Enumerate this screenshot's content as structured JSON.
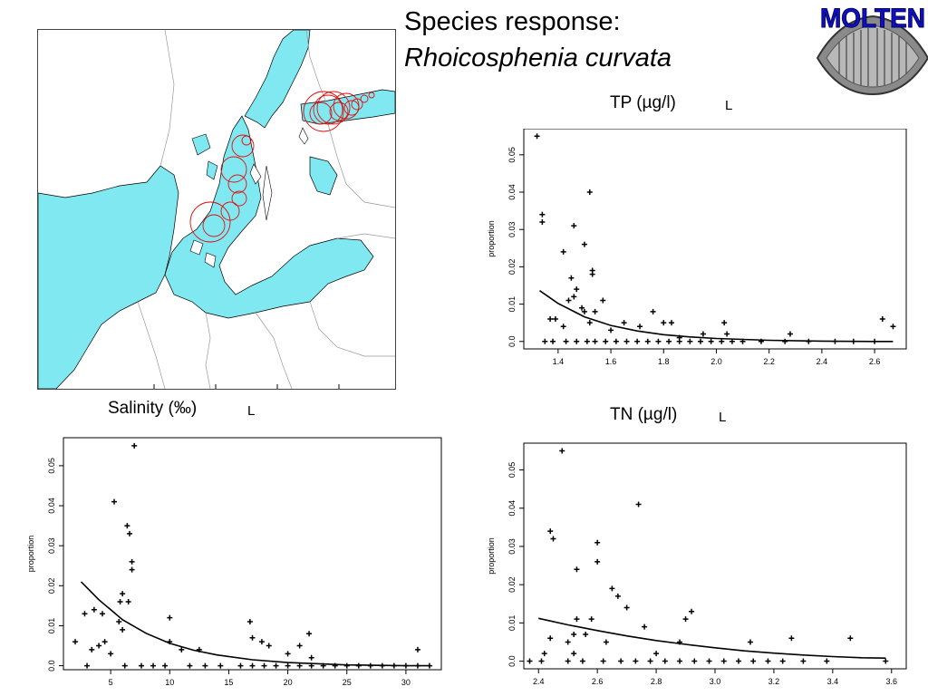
{
  "title": {
    "line1": "Species response:",
    "line2": "Rhoicosphenia curvata"
  },
  "logo_text": "MOLTEN",
  "colors": {
    "sea": "#7fe8f0",
    "marks": "#000000",
    "circles": "#e01010",
    "logo": "#1010c0"
  },
  "panels": {
    "tp": {
      "label": "TP (µg/l)",
      "tag": "L"
    },
    "salinity": {
      "label": "Salinity (‰)",
      "tag": "L"
    },
    "tn": {
      "label": "TN (µg/l)",
      "tag": "L"
    }
  },
  "chart_data": [
    {
      "id": "tp",
      "type": "scatter",
      "title": "TP (µg/l)",
      "xlabel": "",
      "ylabel": "proportion",
      "xlim": [
        1.27,
        2.72
      ],
      "ylim": [
        -0.002,
        0.057
      ],
      "xticks": [
        1.4,
        1.6,
        1.8,
        2.0,
        2.2,
        2.4,
        2.6
      ],
      "yticks": [
        0.0,
        0.01,
        0.02,
        0.03,
        0.04,
        0.05
      ],
      "grid": false,
      "points": [
        [
          1.32,
          0.055
        ],
        [
          1.34,
          0.034
        ],
        [
          1.34,
          0.032
        ],
        [
          1.52,
          0.04
        ],
        [
          1.42,
          0.024
        ],
        [
          1.46,
          0.031
        ],
        [
          1.5,
          0.026
        ],
        [
          1.53,
          0.018
        ],
        [
          1.53,
          0.019
        ],
        [
          1.44,
          0.011
        ],
        [
          1.46,
          0.012
        ],
        [
          1.45,
          0.017
        ],
        [
          1.47,
          0.014
        ],
        [
          1.57,
          0.011
        ],
        [
          1.49,
          0.009
        ],
        [
          1.5,
          0.008
        ],
        [
          1.54,
          0.008
        ],
        [
          1.37,
          0.006
        ],
        [
          1.39,
          0.006
        ],
        [
          1.42,
          0.004
        ],
        [
          1.52,
          0.005
        ],
        [
          1.6,
          0.003
        ],
        [
          1.65,
          0.005
        ],
        [
          1.71,
          0.004
        ],
        [
          1.76,
          0.008
        ],
        [
          1.8,
          0.005
        ],
        [
          1.83,
          0.005
        ],
        [
          1.86,
          0.001
        ],
        [
          1.95,
          0.002
        ],
        [
          2.03,
          0.005
        ],
        [
          2.04,
          0.002
        ],
        [
          2.28,
          0.002
        ],
        [
          2.63,
          0.006
        ],
        [
          2.67,
          0.004
        ],
        [
          1.35,
          0.0
        ],
        [
          1.38,
          0.0
        ],
        [
          1.43,
          0.0
        ],
        [
          1.47,
          0.0
        ],
        [
          1.51,
          0.0
        ],
        [
          1.54,
          0.0
        ],
        [
          1.58,
          0.0
        ],
        [
          1.62,
          0.0
        ],
        [
          1.66,
          0.0
        ],
        [
          1.7,
          0.0
        ],
        [
          1.74,
          0.0
        ],
        [
          1.78,
          0.0
        ],
        [
          1.82,
          0.0
        ],
        [
          1.86,
          0.0
        ],
        [
          1.9,
          0.0
        ],
        [
          1.94,
          0.0
        ],
        [
          1.98,
          0.0
        ],
        [
          2.02,
          0.0
        ],
        [
          2.06,
          0.0
        ],
        [
          2.1,
          0.0
        ],
        [
          2.17,
          0.0
        ],
        [
          2.26,
          0.0
        ],
        [
          2.35,
          0.0
        ],
        [
          2.45,
          0.0
        ],
        [
          2.52,
          0.0
        ],
        [
          2.6,
          0.0
        ]
      ],
      "curve": [
        [
          1.33,
          0.0136
        ],
        [
          1.4,
          0.0102
        ],
        [
          1.5,
          0.0066
        ],
        [
          1.6,
          0.0043
        ],
        [
          1.7,
          0.0028
        ],
        [
          1.8,
          0.0018
        ],
        [
          1.9,
          0.0012
        ],
        [
          2.0,
          0.0008
        ],
        [
          2.2,
          0.0003
        ],
        [
          2.4,
          0.0001
        ],
        [
          2.6,
          0.0
        ],
        [
          2.67,
          0.0
        ]
      ]
    },
    {
      "id": "salinity",
      "type": "scatter",
      "title": "Salinity (‰)",
      "xlabel": "",
      "ylabel": "proportion",
      "xlim": [
        1,
        33
      ],
      "ylim": [
        -0.001,
        0.057
      ],
      "xticks": [
        5,
        10,
        15,
        20,
        25,
        30
      ],
      "yticks": [
        0.0,
        0.01,
        0.02,
        0.03,
        0.04,
        0.05
      ],
      "grid": false,
      "points": [
        [
          7,
          0.055
        ],
        [
          5.3,
          0.041
        ],
        [
          6.4,
          0.035
        ],
        [
          6.6,
          0.033
        ],
        [
          6.8,
          0.026
        ],
        [
          6.8,
          0.024
        ],
        [
          6,
          0.018
        ],
        [
          5.8,
          0.016
        ],
        [
          6.5,
          0.016
        ],
        [
          4.3,
          0.013
        ],
        [
          3.6,
          0.014
        ],
        [
          2.8,
          0.013
        ],
        [
          5.7,
          0.011
        ],
        [
          10,
          0.012
        ],
        [
          6,
          0.009
        ],
        [
          4.5,
          0.006
        ],
        [
          2,
          0.006
        ],
        [
          3.4,
          0.004
        ],
        [
          4,
          0.005
        ],
        [
          5,
          0.003
        ],
        [
          10,
          0.006
        ],
        [
          11,
          0.004
        ],
        [
          12.5,
          0.004
        ],
        [
          16.8,
          0.011
        ],
        [
          17,
          0.007
        ],
        [
          17.8,
          0.006
        ],
        [
          18.4,
          0.005
        ],
        [
          21.8,
          0.008
        ],
        [
          21,
          0.005
        ],
        [
          20,
          0.003
        ],
        [
          22,
          0.002
        ],
        [
          31,
          0.004
        ],
        [
          3,
          0.0
        ],
        [
          6.2,
          0.0
        ],
        [
          7.6,
          0.0
        ],
        [
          8.6,
          0.0
        ],
        [
          9.6,
          0.0
        ],
        [
          11.7,
          0.0
        ],
        [
          13,
          0.0
        ],
        [
          14.3,
          0.0
        ],
        [
          16,
          0.0
        ],
        [
          17,
          0.0
        ],
        [
          18,
          0.0
        ],
        [
          19,
          0.0
        ],
        [
          20,
          0.0
        ],
        [
          21,
          0.0
        ],
        [
          22,
          0.0
        ],
        [
          23,
          0.0
        ],
        [
          24,
          0.0
        ],
        [
          25,
          0.0
        ],
        [
          26,
          0.0
        ],
        [
          27,
          0.0
        ],
        [
          28,
          0.0
        ],
        [
          29,
          0.0
        ],
        [
          30,
          0.0
        ],
        [
          31,
          0.0
        ],
        [
          32,
          0.0
        ]
      ],
      "curve": [
        [
          2.5,
          0.021
        ],
        [
          4,
          0.0165
        ],
        [
          6,
          0.0115
        ],
        [
          8,
          0.0081
        ],
        [
          10,
          0.0056
        ],
        [
          12,
          0.0039
        ],
        [
          14,
          0.0027
        ],
        [
          17,
          0.0015
        ],
        [
          20,
          0.0008
        ],
        [
          25,
          0.0002
        ],
        [
          30,
          0.0
        ],
        [
          32,
          0.0
        ]
      ]
    },
    {
      "id": "tn",
      "type": "scatter",
      "title": "TN (µg/l)",
      "xlabel": "",
      "ylabel": "proportion",
      "xlim": [
        2.35,
        3.65
      ],
      "ylim": [
        -0.002,
        0.057
      ],
      "xticks": [
        2.4,
        2.6,
        2.8,
        3.0,
        3.2,
        3.4,
        3.6
      ],
      "yticks": [
        0.0,
        0.01,
        0.02,
        0.03,
        0.04,
        0.05
      ],
      "grid": false,
      "points": [
        [
          2.48,
          0.055
        ],
        [
          2.74,
          0.041
        ],
        [
          2.44,
          0.034
        ],
        [
          2.45,
          0.032
        ],
        [
          2.6,
          0.031
        ],
        [
          2.6,
          0.026
        ],
        [
          2.53,
          0.024
        ],
        [
          2.65,
          0.019
        ],
        [
          2.67,
          0.017
        ],
        [
          2.7,
          0.014
        ],
        [
          2.92,
          0.013
        ],
        [
          2.9,
          0.011
        ],
        [
          2.58,
          0.011
        ],
        [
          2.53,
          0.011
        ],
        [
          2.76,
          0.009
        ],
        [
          2.88,
          0.005
        ],
        [
          2.44,
          0.006
        ],
        [
          2.5,
          0.005
        ],
        [
          2.52,
          0.007
        ],
        [
          2.56,
          0.007
        ],
        [
          2.63,
          0.005
        ],
        [
          3.12,
          0.005
        ],
        [
          3.26,
          0.006
        ],
        [
          3.46,
          0.006
        ],
        [
          2.42,
          0.002
        ],
        [
          2.52,
          0.002
        ],
        [
          2.8,
          0.002
        ],
        [
          2.37,
          0.0
        ],
        [
          2.41,
          0.0
        ],
        [
          2.5,
          0.0
        ],
        [
          2.55,
          0.0
        ],
        [
          2.62,
          0.0
        ],
        [
          2.68,
          0.0
        ],
        [
          2.73,
          0.0
        ],
        [
          2.78,
          0.0
        ],
        [
          2.83,
          0.0
        ],
        [
          2.88,
          0.0
        ],
        [
          2.93,
          0.0
        ],
        [
          2.98,
          0.0
        ],
        [
          3.03,
          0.0
        ],
        [
          3.08,
          0.0
        ],
        [
          3.13,
          0.0
        ],
        [
          3.18,
          0.0
        ],
        [
          3.23,
          0.0
        ],
        [
          3.3,
          0.0
        ],
        [
          3.38,
          0.0
        ],
        [
          3.58,
          0.0
        ]
      ],
      "curve": [
        [
          2.4,
          0.0112
        ],
        [
          2.5,
          0.0095
        ],
        [
          2.6,
          0.008
        ],
        [
          2.7,
          0.0066
        ],
        [
          2.8,
          0.0054
        ],
        [
          2.9,
          0.0044
        ],
        [
          3.0,
          0.0035
        ],
        [
          3.1,
          0.0027
        ],
        [
          3.2,
          0.0021
        ],
        [
          3.3,
          0.0016
        ],
        [
          3.4,
          0.0012
        ],
        [
          3.5,
          0.0009
        ],
        [
          3.58,
          0.0008
        ]
      ]
    }
  ]
}
